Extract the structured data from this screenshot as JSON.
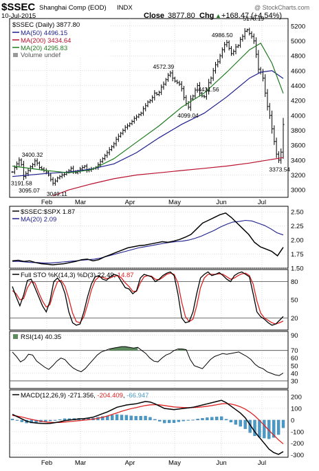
{
  "header": {
    "symbol": "$SSEC",
    "name": "Shanghai Comp (EOD)",
    "exchange": "INDX",
    "date": "10-Jul-2015",
    "close_label": "Close",
    "close_value": "3877.80",
    "chg_label": "Chg",
    "chg_value": "+168.47 (+4.54%)",
    "chg_arrow": "▲",
    "watermark": "@ StockCharts.com"
  },
  "legends": {
    "price_title": "$SSEC (Daily) 3877.80",
    "ma50": "MA(50) 4496.15",
    "ma200": "MA(200) 3434.64",
    "ma20": "MA(20) 4295.83",
    "volume": "Volume undef",
    "ratio_title": "$SSEC:$SPX 1.87",
    "ratio_ma": "MA(20) 2.09",
    "sto_prefix": "Full STO %K(14,3) %D(3) 22.49, ",
    "sto_d": "14.87",
    "rsi": "RSI(14) 40.35",
    "macd_prefix": "MACD(12,26,9) -271.356, ",
    "macd_signal": "-204.409",
    "macd_sep": ", ",
    "macd_hist": "-66.947"
  },
  "x_axis": {
    "months": [
      "Feb",
      "Mar",
      "Apr",
      "May",
      "Jun",
      "Jul"
    ]
  },
  "colors": {
    "price_bar": "#000000",
    "ma50": "#1c1c8c",
    "ma200": "#b8102c",
    "ma20": "#1e7a1e",
    "ratio": "#000000",
    "sto_k": "#000000",
    "sto_d": "#dd2222",
    "rsi_fill": "#5f8c5f",
    "macd_signal": "#dd2222",
    "macd_hist": "#4a9ac8",
    "grid": "#bbbbbb"
  },
  "chart_data": [
    {
      "type": "ohlc",
      "title": "$SSEC (Daily) 3877.80",
      "ylim": [
        2900,
        5300
      ],
      "yticks": [
        3000,
        3200,
        3400,
        3600,
        3800,
        4000,
        4200,
        4400,
        4600,
        4800,
        5000,
        5200
      ],
      "close": [
        3240,
        3300,
        3350,
        3400,
        3340,
        3180,
        3220,
        3260,
        3310,
        3340,
        3390,
        3360,
        3300,
        3280,
        3260,
        3240,
        3200,
        3140,
        3090,
        3120,
        3160,
        3180,
        3200,
        3210,
        3240,
        3260,
        3290,
        3250,
        3230,
        3250,
        3280,
        3300,
        3320,
        3260,
        3270,
        3280,
        3290,
        3300,
        3340,
        3380,
        3420,
        3460,
        3500,
        3540,
        3580,
        3620,
        3680,
        3720,
        3760,
        3800,
        3840,
        3860,
        3890,
        3920,
        3960,
        3980,
        4010,
        4030,
        4090,
        4130,
        4180,
        4200,
        4240,
        4300,
        4280,
        4310,
        4380,
        4420,
        4480,
        4540,
        4570,
        4500,
        4460,
        4440,
        4420,
        4360,
        4240,
        4160,
        4110,
        4220,
        4260,
        4340,
        4400,
        4300,
        4260,
        4250,
        4330,
        4440,
        4500,
        4600,
        4680,
        4720,
        4800,
        4880,
        4950,
        4980,
        4900,
        4830,
        4860,
        4920,
        4940,
        5020,
        5060,
        5130,
        5150,
        5100,
        5060,
        5000,
        4820,
        4620,
        4580,
        4500,
        4300,
        4120,
        4000,
        3820,
        3650,
        3480,
        3400,
        3507,
        3877.8
      ],
      "annotations": [
        {
          "label": "3400.32",
          "value": 3400.32
        },
        {
          "label": "3191.58",
          "value": 3191.58
        },
        {
          "label": "3095.07",
          "value": 3095.07
        },
        {
          "label": "3049.11",
          "value": 3049.11
        },
        {
          "label": "4572.39",
          "value": 4572.39
        },
        {
          "label": "4099.04",
          "value": 4099.04
        },
        {
          "label": "4431.56",
          "value": 4431.56
        },
        {
          "label": "4986.50",
          "value": 4986.5
        },
        {
          "label": "5178.19",
          "value": 5178.19
        },
        {
          "label": "3373.54",
          "value": 3373.54
        }
      ],
      "series": [
        {
          "name": "MA(50) 4496.15",
          "values": [
            [
              0,
              3180
            ],
            [
              15,
              3220
            ],
            [
              25,
              3240
            ],
            [
              35,
              3280
            ],
            [
              45,
              3350
            ],
            [
              55,
              3500
            ],
            [
              65,
              3700
            ],
            [
              75,
              3880
            ],
            [
              85,
              4030
            ],
            [
              95,
              4250
            ],
            [
              105,
              4500
            ],
            [
              110,
              4580
            ],
            [
              115,
              4600
            ],
            [
              120,
              4496
            ]
          ]
        },
        {
          "name": "MA(200) 3434.64",
          "values": [
            [
              18,
              2920
            ],
            [
              25,
              3000
            ],
            [
              35,
              3080
            ],
            [
              45,
              3150
            ],
            [
              55,
              3200
            ],
            [
              65,
              3230
            ],
            [
              75,
              3260
            ],
            [
              85,
              3290
            ],
            [
              95,
              3320
            ],
            [
              105,
              3360
            ],
            [
              115,
              3410
            ],
            [
              120,
              3434
            ]
          ]
        },
        {
          "name": "MA(20) 4295.83",
          "values": [
            [
              0,
              3320
            ],
            [
              15,
              3260
            ],
            [
              25,
              3230
            ],
            [
              35,
              3270
            ],
            [
              45,
              3420
            ],
            [
              55,
              3640
            ],
            [
              65,
              3860
            ],
            [
              75,
              4110
            ],
            [
              85,
              4300
            ],
            [
              95,
              4580
            ],
            [
              105,
              4880
            ],
            [
              110,
              4970
            ],
            [
              115,
              4700
            ],
            [
              120,
              4296
            ]
          ]
        }
      ]
    },
    {
      "type": "line",
      "title": "$SSEC:$SPX 1.87",
      "ylim": [
        1.5,
        2.6
      ],
      "yticks": [
        1.5,
        1.75,
        2.0,
        2.25,
        2.5
      ],
      "series": [
        {
          "name": "$SSEC:$SPX 1.87",
          "values": [
            1.63,
            1.64,
            1.62,
            1.63,
            1.6,
            1.58,
            1.57,
            1.56,
            1.57,
            1.58,
            1.6,
            1.62,
            1.65,
            1.66,
            1.63,
            1.65,
            1.7,
            1.74,
            1.78,
            1.82,
            1.86,
            1.88,
            1.9,
            1.91,
            1.93,
            1.95,
            1.97,
            1.96,
            1.98,
            2.01,
            2.05,
            2.1,
            2.2,
            2.3,
            2.35,
            2.4,
            2.45,
            2.48,
            2.4,
            2.3,
            2.2,
            2.1,
            1.96,
            1.88,
            1.84,
            1.8,
            1.72,
            1.87
          ]
        },
        {
          "name": "MA(20) 2.09",
          "values": [
            1.62,
            1.62,
            1.61,
            1.6,
            1.6,
            1.59,
            1.59,
            1.6,
            1.61,
            1.62,
            1.63,
            1.64,
            1.65,
            1.66,
            1.68,
            1.71,
            1.74,
            1.77,
            1.8,
            1.83,
            1.86,
            1.88,
            1.9,
            1.92,
            1.94,
            1.96,
            1.97,
            1.98,
            2.0,
            2.03,
            2.07,
            2.12,
            2.17,
            2.23,
            2.28,
            2.32,
            2.33,
            2.35,
            2.34,
            2.3,
            2.26,
            2.2,
            2.13,
            2.09
          ]
        }
      ]
    },
    {
      "type": "line",
      "title": "Full STO %K(14,3) %D(3) 22.49, 14.87",
      "ylim": [
        0,
        100
      ],
      "yticks": [
        20,
        50,
        80
      ],
      "series": [
        {
          "name": "%K",
          "values": [
            72,
            55,
            40,
            58,
            82,
            84,
            70,
            55,
            40,
            30,
            48,
            80,
            86,
            78,
            60,
            30,
            12,
            8,
            10,
            30,
            55,
            76,
            88,
            90,
            84,
            82,
            88,
            92,
            90,
            80,
            70,
            68,
            60,
            65,
            86,
            92,
            90,
            88,
            80,
            84,
            90,
            94,
            96,
            90,
            60,
            20,
            12,
            14,
            30,
            60,
            86,
            92,
            96,
            90,
            92,
            95,
            90,
            84,
            80,
            90,
            94,
            96,
            92,
            88,
            60,
            30,
            22,
            18,
            12,
            8,
            10,
            16,
            22.49
          ]
        },
        {
          "name": "%D",
          "values": [
            65,
            60,
            50,
            52,
            70,
            80,
            78,
            62,
            48,
            38,
            42,
            64,
            80,
            82,
            72,
            52,
            28,
            14,
            12,
            22,
            42,
            66,
            82,
            88,
            87,
            85,
            86,
            89,
            90,
            86,
            78,
            72,
            64,
            64,
            78,
            88,
            90,
            89,
            84,
            83,
            87,
            92,
            94,
            92,
            78,
            46,
            22,
            14,
            18,
            40,
            70,
            86,
            92,
            92,
            92,
            93,
            92,
            88,
            84,
            86,
            90,
            93,
            94,
            90,
            76,
            48,
            28,
            20,
            16,
            12,
            10,
            12,
            14.87
          ]
        }
      ]
    },
    {
      "type": "area",
      "title": "RSI(14) 40.35",
      "ylim": [
        20,
        95
      ],
      "yticks": [
        30,
        40,
        50,
        60,
        70,
        90
      ],
      "series": [
        {
          "name": "RSI(14) 40.35",
          "values": [
            68,
            62,
            55,
            58,
            65,
            64,
            56,
            52,
            48,
            45,
            50,
            56,
            60,
            58,
            52,
            47,
            44,
            42,
            46,
            52,
            58,
            64,
            68,
            70,
            72,
            73,
            74,
            75,
            75,
            74,
            73,
            74,
            70,
            66,
            60,
            56,
            55,
            60,
            64,
            66,
            70,
            72,
            72,
            71,
            58,
            50,
            48,
            46,
            52,
            58,
            62,
            64,
            66,
            65,
            66,
            67,
            68,
            65,
            62,
            58,
            52,
            48,
            46,
            42,
            40,
            38,
            37,
            40.35
          ]
        }
      ]
    },
    {
      "type": "line",
      "title": "MACD(12,26,9) -271.356, -204.409, -66.947",
      "ylim": [
        -320,
        260
      ],
      "yticks": [
        200,
        100,
        0,
        -100,
        -200,
        -300
      ],
      "series": [
        {
          "name": "MACD",
          "values": [
            50,
            30,
            10,
            -10,
            -20,
            -25,
            -28,
            -30,
            -28,
            -22,
            -15,
            -5,
            0,
            5,
            10,
            12,
            18,
            25,
            40,
            55,
            70,
            90,
            110,
            120,
            130,
            135,
            140,
            150,
            160,
            155,
            140,
            120,
            100,
            95,
            90,
            95,
            100,
            105,
            110,
            120,
            130,
            140,
            150,
            160,
            170,
            150,
            120,
            90,
            60,
            20,
            -40,
            -100,
            -150,
            -200,
            -250,
            -280,
            -295,
            -271.356
          ]
        },
        {
          "name": "Signal",
          "values": [
            40,
            34,
            26,
            16,
            6,
            -2,
            -10,
            -16,
            -20,
            -21,
            -20,
            -17,
            -13,
            -9,
            -5,
            -1,
            3,
            8,
            15,
            24,
            35,
            48,
            62,
            76,
            88,
            99,
            107,
            116,
            125,
            131,
            133,
            131,
            125,
            119,
            113,
            110,
            108,
            107,
            108,
            110,
            114,
            119,
            125,
            132,
            140,
            142,
            138,
            128,
            114,
            95,
            68,
            36,
            -2,
            -45,
            -89,
            -130,
            -170,
            -204.409
          ]
        },
        {
          "name": "Histogram",
          "values": [
            10,
            -4,
            -16,
            -26,
            -26,
            -23,
            -18,
            -14,
            -8,
            -1,
            5,
            12,
            13,
            14,
            15,
            13,
            15,
            17,
            25,
            31,
            35,
            42,
            48,
            44,
            42,
            36,
            33,
            34,
            35,
            24,
            7,
            -11,
            -25,
            -24,
            -23,
            -15,
            -8,
            -2,
            2,
            10,
            16,
            21,
            25,
            28,
            30,
            8,
            -18,
            -38,
            -54,
            -75,
            -108,
            -136,
            -148,
            -155,
            -161,
            -150,
            -125,
            -66.947
          ]
        }
      ]
    }
  ]
}
